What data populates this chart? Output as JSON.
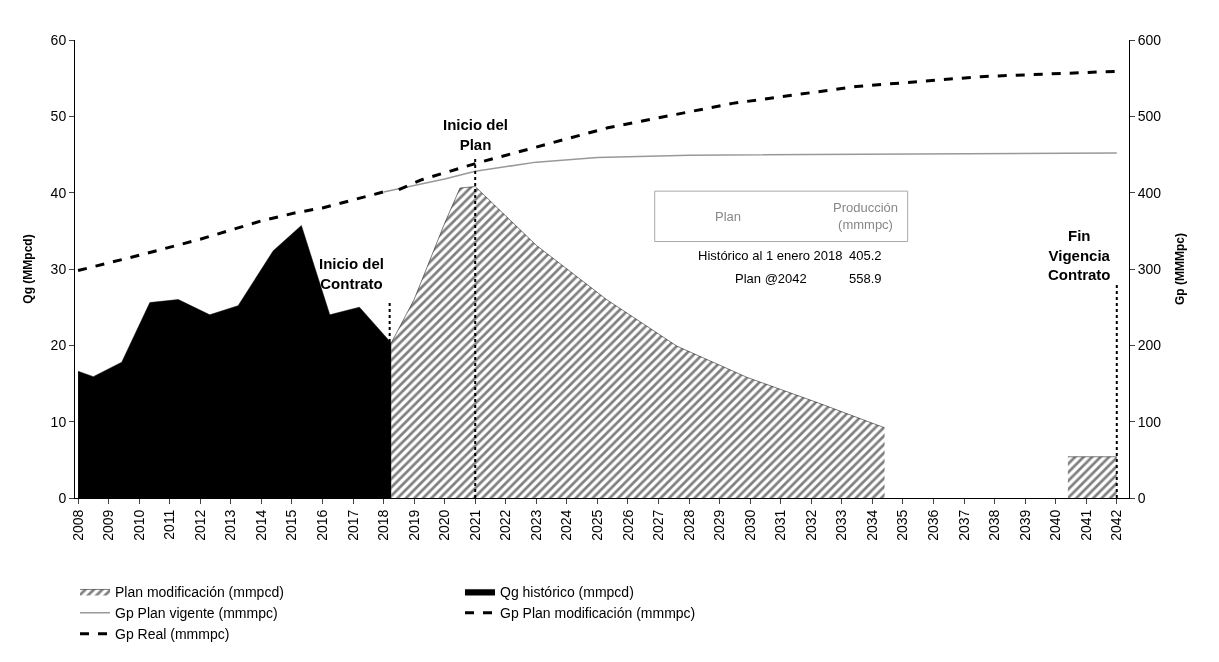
{
  "chart_data": {
    "type": "area",
    "xlabel": null,
    "ylabel": "Qg (MMpcd)",
    "y2label": "Gp (MMMpc)",
    "xlim": [
      2007.9,
      2042.4
    ],
    "xticks": [
      2008,
      2009,
      2010,
      2011,
      2012,
      2013,
      2014,
      2015,
      2016,
      2017,
      2018,
      2019,
      2020,
      2021,
      2022,
      2023,
      2024,
      2025,
      2026,
      2027,
      2028,
      2029,
      2030,
      2031,
      2032,
      2033,
      2034,
      2035,
      2036,
      2037,
      2038,
      2039,
      2040,
      2041,
      2042
    ],
    "ylim": [
      0,
      60
    ],
    "yticks": [
      0,
      10,
      20,
      30,
      40,
      50,
      60
    ],
    "y2lim": [
      0,
      600
    ],
    "y2ticks": [
      0,
      100,
      200,
      300,
      400,
      500,
      600
    ],
    "series": [
      {
        "name": "Plan modificación (mmpcd)",
        "color": "#000000",
        "x": [
          2018.25,
          2019,
          2020,
          2020.5,
          2021,
          2023,
          2025.3,
          2027.6,
          2029.9,
          2032.2,
          2034.4
        ],
        "values": [
          20.3,
          26,
          36,
          40.6,
          40.8,
          33.1,
          26,
          19.9,
          15.8,
          12.5,
          9.2
        ]
      },
      {
        "name": "Qg histórico (mmpcd)",
        "color": "#000000",
        "x": [
          2008,
          2008.5,
          2009.43,
          2010.35,
          2011.28,
          2012.31,
          2013.24,
          2014.39,
          2015.31,
          2016.24,
          2017.21,
          2018.25
        ],
        "values": [
          16.6,
          15.9,
          17.8,
          25.6,
          26,
          24,
          25.2,
          32.4,
          35.7,
          24,
          25,
          20.3
        ]
      },
      {
        "color": "#000000",
        "x": [
          2040.4,
          2042
        ],
        "values": [
          5.4,
          5.4
        ]
      },
      {
        "name": "Gp Plan vigente (mmmpc)",
        "type": "line",
        "axis": "y2",
        "color": "#999999",
        "line_style": "solid",
        "x": [
          2018,
          2020,
          2021,
          2023,
          2025,
          2028,
          2042
        ],
        "values": [
          401,
          418,
          428,
          440,
          446,
          449,
          452
        ]
      },
      {
        "name": "Gp Plan modificación (mmmpc)",
        "type": "line",
        "axis": "y2",
        "color": "#000000",
        "line_style": "dashed",
        "x": [
          2018.5,
          2019.25,
          2021.08,
          2025.34,
          2029.42,
          2033.47,
          2037.55,
          2042
        ],
        "values": [
          404,
          417,
          439,
          485,
          517,
          539,
          552,
          559
        ]
      },
      {
        "name": "Gp Real (mmmpc)",
        "type": "line",
        "axis": "y2",
        "color": "#000000",
        "line_style": "dashed",
        "x": [
          2008,
          2010,
          2012,
          2014,
          2015.16,
          2016,
          2018
        ],
        "values": [
          298,
          318,
          339,
          363,
          374,
          380,
          401
        ]
      }
    ],
    "ref_lines": [
      {
        "axis": "x",
        "value": 2018.2,
        "label": "Inicio del\nContrato",
        "line_style": "dotted",
        "color": "#000000"
      },
      {
        "axis": "x",
        "value": 2021,
        "label": "Inicio del\nPlan",
        "line_style": "dotted",
        "color": "#000000"
      },
      {
        "axis": "x",
        "value": 2042,
        "label": "Fin\nVigencia\nContrato",
        "line_style": "dotted",
        "color": "#000000"
      }
    ],
    "annotations": [
      "Plan",
      "Producción\n(mmmpc)",
      "Histórico al 1 enero 2018",
      "405.2",
      "Plan @2042",
      "558.9"
    ],
    "legend": "bottom",
    "marker": "none"
  }
}
